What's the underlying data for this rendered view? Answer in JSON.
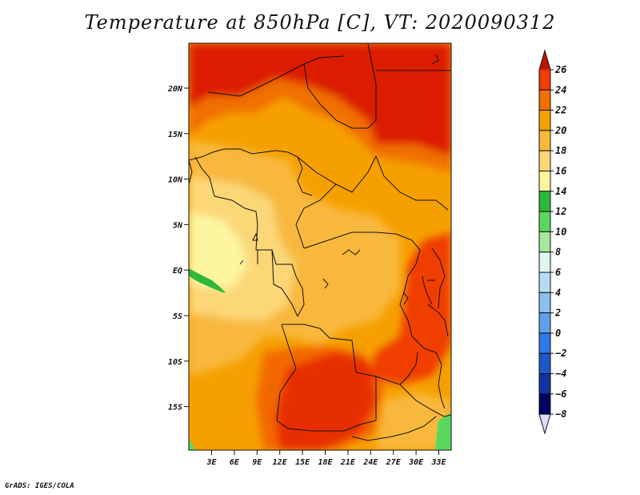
{
  "title": "Temperature at 850hPa [C], VT: 2020090312",
  "credit": "GrADS: IGES/COLA",
  "map": {
    "lat_labels": [
      "20N",
      "15N",
      "10N",
      "5N",
      "EQ",
      "5S",
      "10S",
      "15S"
    ],
    "lon_labels": [
      "3E",
      "6E",
      "9E",
      "12E",
      "15E",
      "18E",
      "21E",
      "24E",
      "27E",
      "30E",
      "33E"
    ]
  },
  "colorbar": {
    "levels": [
      "26",
      "24",
      "22",
      "20",
      "18",
      "16",
      "14",
      "12",
      "10",
      "8",
      "6",
      "4",
      "2",
      "0",
      "−2",
      "−4",
      "−6",
      "−8"
    ],
    "colors": [
      "#dc1e00",
      "#f03c00",
      "#f07000",
      "#f5a000",
      "#f8b83c",
      "#fbd778",
      "#fdf5a0",
      "#2eb83a",
      "#5bd75f",
      "#a4e8a0",
      "#e0f5f0",
      "#b4dcf5",
      "#8cc0f0",
      "#5fa0ea",
      "#3278e6",
      "#1e58c8",
      "#1034a0",
      "#000064"
    ],
    "top_color": "#be1400",
    "bottom_color": "#dcdcfa"
  }
}
